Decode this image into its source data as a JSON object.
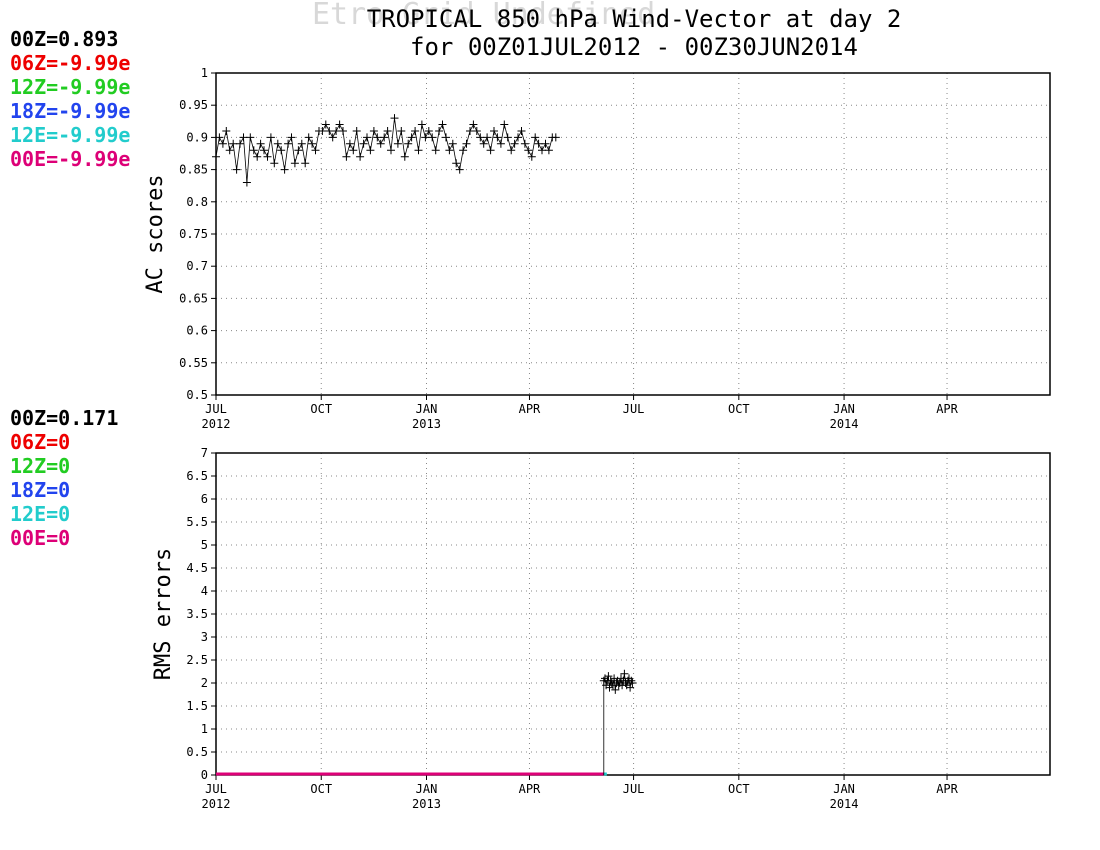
{
  "page": {
    "watermark": "Etro Grid Undefined",
    "title_line1": "TROPICAL 850 hPa Wind-Vector at day 2",
    "title_line2": "for 00Z01JUL2012 - 00Z30JUN2014"
  },
  "legend_colors": {
    "00Z": "#000000",
    "06Z": "#ee0000",
    "12Z": "#22cc22",
    "18Z": "#2244ee",
    "12E": "#22cccc",
    "00E": "#dd0077"
  },
  "chart_data": [
    {
      "type": "scatter",
      "title": "",
      "ylabel": "AC scores",
      "xlabel": "",
      "ylim": [
        0.5,
        1.0
      ],
      "yticks": [
        0.5,
        0.55,
        0.6,
        0.65,
        0.7,
        0.75,
        0.8,
        0.85,
        0.9,
        0.95,
        1
      ],
      "ytick_labels": [
        "0.5",
        "0.55",
        "0.6",
        "0.65",
        "0.7",
        "0.75",
        "0.8",
        "0.85",
        "0.9",
        "0.95",
        "1"
      ],
      "xlim": [
        "2012-07-01",
        "2014-06-30"
      ],
      "xticks": [
        {
          "date": "2012-07-01",
          "label": "JUL",
          "year": "2012"
        },
        {
          "date": "2012-10-01",
          "label": "OCT",
          "year": ""
        },
        {
          "date": "2013-01-01",
          "label": "JAN",
          "year": "2013"
        },
        {
          "date": "2013-04-01",
          "label": "APR",
          "year": ""
        },
        {
          "date": "2013-07-01",
          "label": "JUL",
          "year": ""
        },
        {
          "date": "2013-10-01",
          "label": "OCT",
          "year": ""
        },
        {
          "date": "2014-01-01",
          "label": "JAN",
          "year": "2014"
        },
        {
          "date": "2014-04-01",
          "label": "APR",
          "year": ""
        }
      ],
      "grid": true,
      "legend": [
        {
          "key": "00Z",
          "text": "00Z=0.893"
        },
        {
          "key": "06Z",
          "text": "06Z=-9.99e"
        },
        {
          "key": "12Z",
          "text": "12Z=-9.99e"
        },
        {
          "key": "18Z",
          "text": "18Z=-9.99e"
        },
        {
          "key": "12E",
          "text": "12E=-9.99e"
        },
        {
          "key": "00E",
          "text": "00E=-9.99e"
        }
      ],
      "series": [
        {
          "name": "00Z",
          "x_start": "2012-07-01",
          "x_step_days": 3,
          "values": [
            0.87,
            0.9,
            0.89,
            0.91,
            0.88,
            0.89,
            0.85,
            0.89,
            0.9,
            0.83,
            0.9,
            0.88,
            0.87,
            0.89,
            0.88,
            0.87,
            0.9,
            0.86,
            0.89,
            0.88,
            0.85,
            0.89,
            0.9,
            0.86,
            0.88,
            0.89,
            0.86,
            0.9,
            0.89,
            0.88,
            0.91,
            0.91,
            0.92,
            0.91,
            0.9,
            0.91,
            0.92,
            0.91,
            0.87,
            0.89,
            0.88,
            0.91,
            0.87,
            0.89,
            0.9,
            0.88,
            0.91,
            0.9,
            0.89,
            0.9,
            0.91,
            0.88,
            0.93,
            0.89,
            0.91,
            0.87,
            0.89,
            0.9,
            0.91,
            0.88,
            0.92,
            0.9,
            0.91,
            0.9,
            0.88,
            0.91,
            0.92,
            0.9,
            0.88,
            0.89,
            0.86,
            0.85,
            0.88,
            0.89,
            0.91,
            0.92,
            0.91,
            0.9,
            0.89,
            0.9,
            0.88,
            0.91,
            0.9,
            0.89,
            0.92,
            0.9,
            0.88,
            0.89,
            0.9,
            0.91,
            0.89,
            0.88,
            0.87,
            0.9,
            0.89,
            0.88,
            0.89,
            0.88,
            0.9,
            0.9
          ]
        }
      ]
    },
    {
      "type": "line",
      "title": "",
      "ylabel": "RMS errors",
      "xlabel": "",
      "ylim": [
        0,
        7
      ],
      "yticks": [
        0,
        0.5,
        1,
        1.5,
        2,
        2.5,
        3,
        3.5,
        4,
        4.5,
        5,
        5.5,
        6,
        6.5,
        7
      ],
      "ytick_labels": [
        "0",
        "0.5",
        "1",
        "1.5",
        "2",
        "2.5",
        "3",
        "3.5",
        "4",
        "4.5",
        "5",
        "5.5",
        "6",
        "6.5",
        "7"
      ],
      "xlim": [
        "2012-07-01",
        "2014-06-30"
      ],
      "xticks": [
        {
          "date": "2012-07-01",
          "label": "JUL",
          "year": "2012"
        },
        {
          "date": "2012-10-01",
          "label": "OCT",
          "year": ""
        },
        {
          "date": "2013-01-01",
          "label": "JAN",
          "year": "2013"
        },
        {
          "date": "2013-04-01",
          "label": "APR",
          "year": ""
        },
        {
          "date": "2013-07-01",
          "label": "JUL",
          "year": ""
        },
        {
          "date": "2013-10-01",
          "label": "OCT",
          "year": ""
        },
        {
          "date": "2014-01-01",
          "label": "JAN",
          "year": "2014"
        },
        {
          "date": "2014-04-01",
          "label": "APR",
          "year": ""
        }
      ],
      "grid": true,
      "legend": [
        {
          "key": "00Z",
          "text": "00Z=0.171"
        },
        {
          "key": "06Z",
          "text": "06Z=0"
        },
        {
          "key": "12Z",
          "text": "12Z=0"
        },
        {
          "key": "18Z",
          "text": "18Z=0"
        },
        {
          "key": "12E",
          "text": "12E=0"
        },
        {
          "key": "00E",
          "text": "00E=0"
        }
      ],
      "baseline": {
        "from": "2012-07-01",
        "to": "2013-06-05",
        "value": 0
      },
      "series": [
        {
          "name": "00Z",
          "x_start": "2013-06-05",
          "x_step_days": 1,
          "values": [
            2.05,
            2.1,
            1.95,
            2.05,
            2.15,
            1.9,
            2.05,
            2.0,
            1.95,
            2.1,
            1.85,
            2.0,
            2.05,
            1.95,
            2.0,
            2.1,
            1.95,
            2.05,
            2.2,
            2.0,
            1.95,
            2.05,
            2.1,
            1.9,
            2.05,
            2.0
          ]
        }
      ]
    }
  ]
}
